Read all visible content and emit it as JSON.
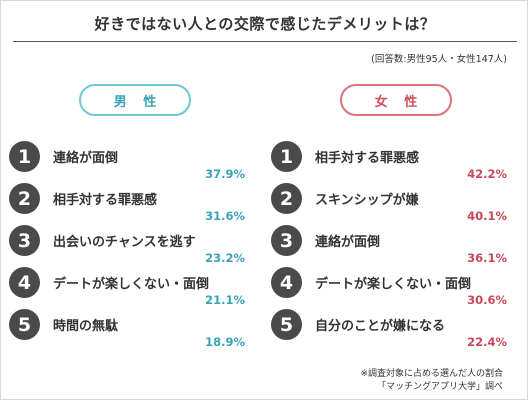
{
  "title": "好きではない人との交際で感じたデメリットは？",
  "subtitle": "(回答数:男性95人・女性147人)",
  "colors": {
    "male": "#3aa3b8",
    "female": "#c8485a",
    "badge": "#4a4a4a"
  },
  "chart_data": [
    {
      "type": "table",
      "title": "男 性",
      "categories": [
        "連絡が面倒",
        "相手対する罪悪感",
        "出会いのチャンスを逃す",
        "デートが楽しくない・面倒",
        "時間の無駄"
      ],
      "ranks": [
        "1",
        "2",
        "3",
        "4",
        "5"
      ],
      "values": [
        37.9,
        31.6,
        23.2,
        21.1,
        18.9
      ],
      "value_labels": [
        "37.9%",
        "31.6%",
        "23.2%",
        "21.1%",
        "18.9%"
      ]
    },
    {
      "type": "table",
      "title": "女 性",
      "categories": [
        "相手対する罪悪感",
        "スキンシップが嫌",
        "連絡が面倒",
        "デートが楽しくない・面倒",
        "自分のことが嫌になる"
      ],
      "ranks": [
        "1",
        "2",
        "3",
        "4",
        "5"
      ],
      "values": [
        42.2,
        40.1,
        36.1,
        30.6,
        22.4
      ],
      "value_labels": [
        "42.2%",
        "40.1%",
        "36.1%",
        "30.6%",
        "22.4%"
      ]
    }
  ],
  "footnote": {
    "line1": "※調査対象に占める選んだ人の割合",
    "line2": "「マッチングアプリ大学」調べ"
  }
}
